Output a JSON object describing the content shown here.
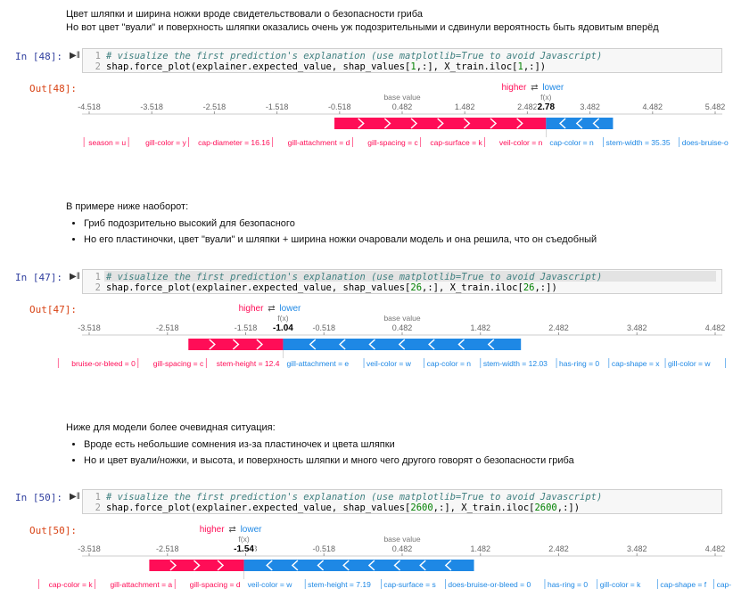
{
  "md1": {
    "line1": "Цвет шляпки и ширина ножки вроде свидетельствовали о безопасности гриба",
    "line2": "Но вот цвет \"вуали\" и поверхность шляпки оказались очень уж подозрительными и сдвинули вероятность быть ядовитым вперёд"
  },
  "md2": {
    "intro": "В примере ниже наоборот:",
    "bullets": [
      "Гриб подозрительно высокий для безопасного",
      "Но его пластиночки, цвет \"вуали\" и шляпки + ширина ножки очаровали модель и она решила, что он съедобный"
    ]
  },
  "md3": {
    "intro": "Ниже для модели более очевидная ситуация:",
    "bullets": [
      "Вроде есть небольшие сомнения из-за пластиночек и цвета шляпки",
      "Но и цвет вуали/ножки, и высота, и поверхность шляпки и много чего другого говорят о безопасности гриба"
    ]
  },
  "colors": {
    "higher": "#ff0d57",
    "lower": "#1e88e5",
    "prompt": "#303f9f",
    "out": "#d84315"
  },
  "icons": {
    "run": "run-triangle-icon",
    "arrows": "swap-arrows-icon"
  },
  "legend": {
    "higher": "higher",
    "lower": "lower",
    "base": "base value",
    "fx": "f(x)"
  },
  "cells": [
    {
      "prompt": "In [48]:",
      "out": "Out[48]:",
      "line1": "# visualize the first prediction's explanation (use matplotlib=True to avoid Javascript)",
      "line2_pre": "shap.force_plot(explainer.expected_value, shap_values[",
      "line2_num": "1",
      "line2_mid": ",:], X_train.iloc[",
      "line2_num2": "1",
      "line2_post": ",:])",
      "ticks": [
        "-4.518",
        "-3.518",
        "-2.518",
        "-1.518",
        "-0.518",
        "0.482",
        "1.482",
        "2.482",
        "3.482",
        "4.482",
        "5.482"
      ],
      "axis_min": -4.518,
      "axis_max": 5.482,
      "base_value": 0.482,
      "fx": 2.78,
      "fx_label": "2.78",
      "red_from": -0.6,
      "blue_to": 3.85,
      "red_features": [
        "season = u",
        "gill-color = y",
        "cap-diameter = 16.16",
        "gill-attachment = d",
        "gill-spacing = c",
        "cap-surface = k",
        "veil-color = n"
      ],
      "blue_features": [
        "cap-color = n",
        "stem-width = 35.35",
        "does-bruise-o"
      ]
    },
    {
      "prompt": "In [47]:",
      "out": "Out[47]:",
      "line1": "# visualize the first prediction's explanation (use matplotlib=True to avoid Javascript)",
      "line2_pre": "shap.force_plot(explainer.expected_value, shap_values[",
      "line2_num": "26",
      "line2_mid": ",:], X_train.iloc[",
      "line2_num2": "26",
      "line2_post": ",:])",
      "ticks": [
        "-3.518",
        "-2.518",
        "-1.518",
        "-0.518",
        "0.482",
        "1.482",
        "2.482",
        "3.482",
        "4.482"
      ],
      "axis_min": -3.518,
      "axis_max": 4.482,
      "base_value": 0.482,
      "fx": -1.04,
      "fx_label": "-1.04",
      "red_from": -2.25,
      "blue_to": 2.0,
      "red_features": [
        "bruise-or-bleed = 0",
        "gill-spacing = c",
        "stem-height = 12.4"
      ],
      "blue_features": [
        "gill-attachment = e",
        "veil-color = w",
        "cap-color = n",
        "stem-width = 12.03",
        "has-ring = 0",
        "cap-shape = x",
        "gill-color = w"
      ]
    },
    {
      "prompt": "In [50]:",
      "out": "Out[50]:",
      "line1": "# visualize the first prediction's explanation (use matplotlib=True to avoid Javascript)",
      "line2_pre": "shap.force_plot(explainer.expected_value, shap_values[",
      "line2_num": "2600",
      "line2_mid": ",:], X_train.iloc[",
      "line2_num2": "2600",
      "line2_post": ",:])",
      "ticks": [
        "-3.518",
        "-2.518",
        "-1.518",
        "-0.518",
        "0.482",
        "1.482",
        "2.482",
        "3.482",
        "4.482"
      ],
      "axis_min": -3.518,
      "axis_max": 4.482,
      "base_value": 0.482,
      "fx": -1.54,
      "fx_label": "-1.54",
      "red_from": -2.75,
      "blue_to": 1.4,
      "red_features": [
        "cap-color = k",
        "gill-attachment = a",
        "gill-spacing = d"
      ],
      "blue_features": [
        "veil-color = w",
        "stem-height = 7.19",
        "cap-surface = s",
        "does-bruise-or-bleed = 0",
        "has-ring = 0",
        "gill-color = k",
        "cap-shape = f",
        "cap-"
      ]
    }
  ]
}
